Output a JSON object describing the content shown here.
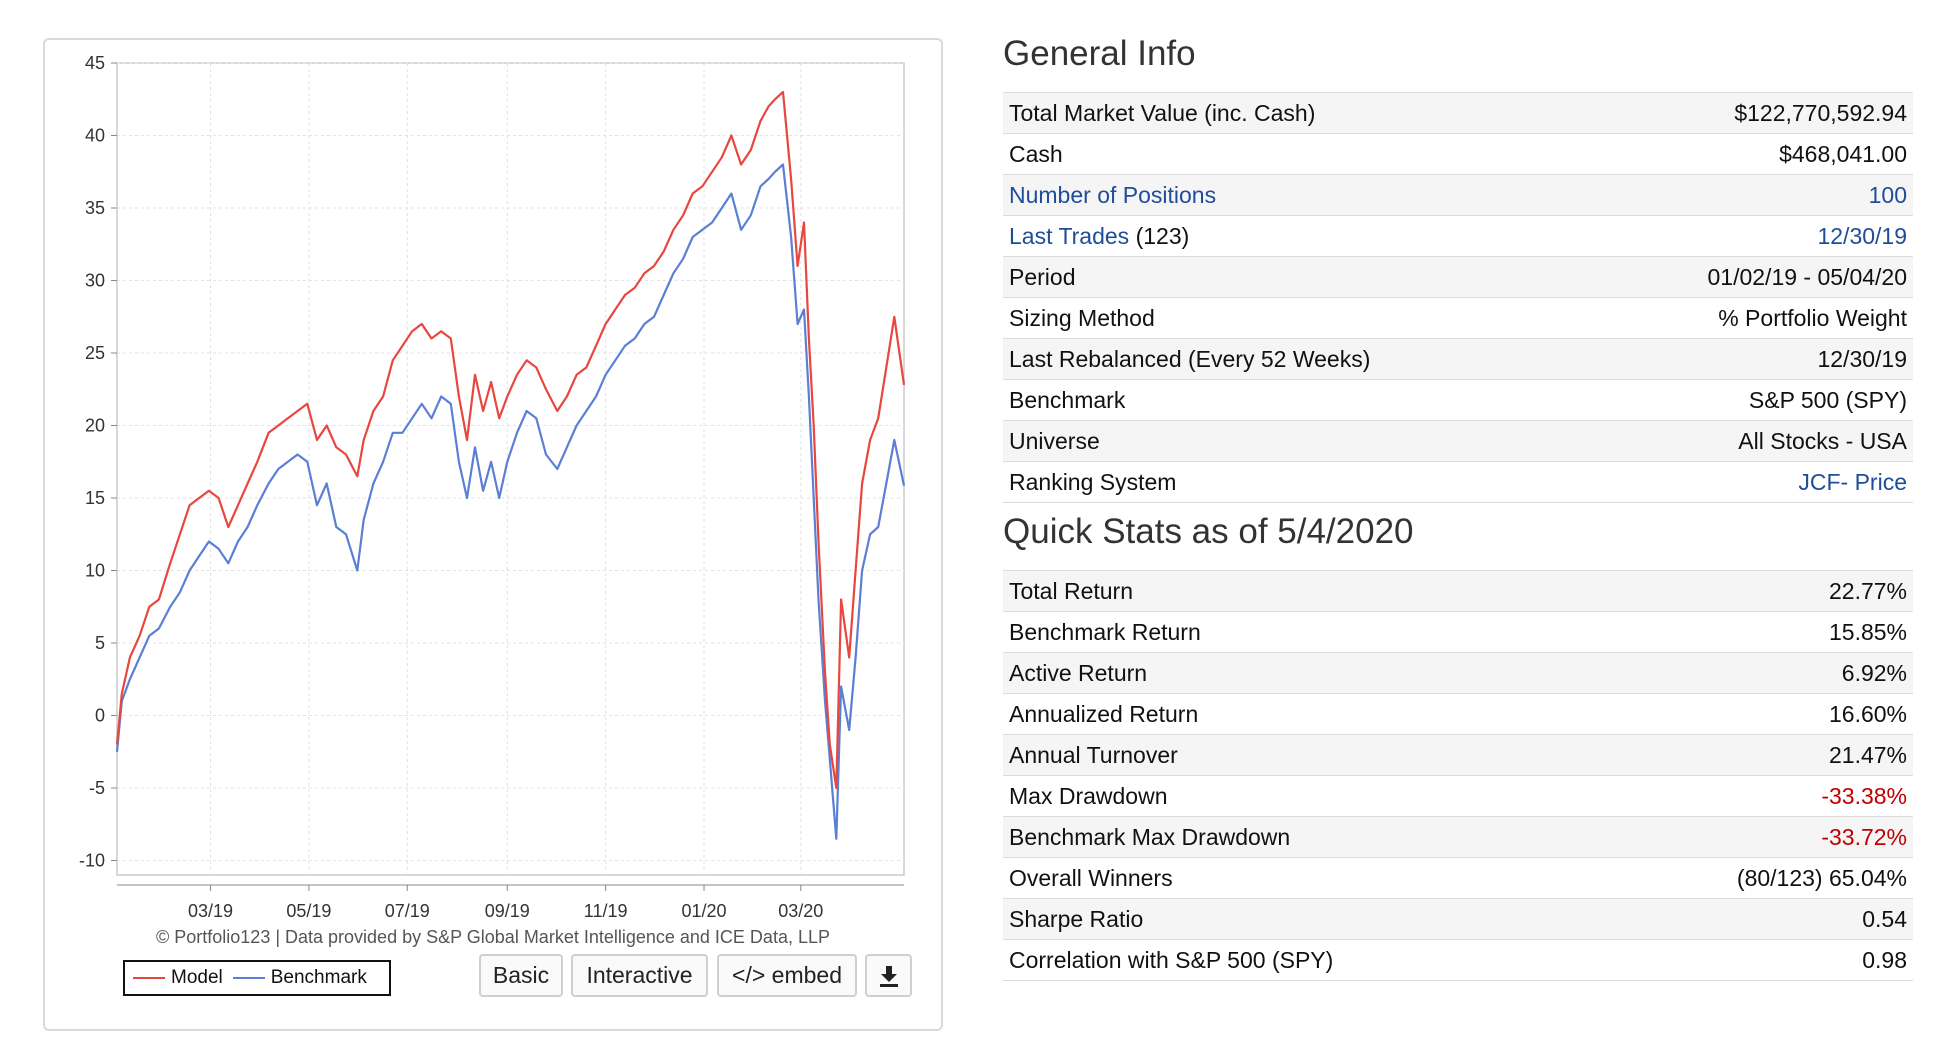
{
  "chart_data": {
    "type": "line",
    "title": "",
    "xlabel": "",
    "ylabel": "",
    "x_ticks": [
      "03/19",
      "05/19",
      "07/19",
      "09/19",
      "11/19",
      "01/20",
      "03/20"
    ],
    "ylim": [
      -11,
      45
    ],
    "y_ticks": [
      45,
      40,
      35,
      30,
      25,
      20,
      15,
      10,
      5,
      0,
      -5,
      -10
    ],
    "grid": true,
    "legend_position": "bottom-left",
    "series": [
      {
        "name": "Model",
        "color": "#e8473f",
        "points": [
          [
            "2019-01-02",
            -2.0
          ],
          [
            "2019-01-05",
            1.5
          ],
          [
            "2019-01-10",
            4.0
          ],
          [
            "2019-01-16",
            5.5
          ],
          [
            "2019-01-22",
            7.5
          ],
          [
            "2019-01-28",
            8.0
          ],
          [
            "2019-02-04",
            10.5
          ],
          [
            "2019-02-10",
            12.5
          ],
          [
            "2019-02-16",
            14.5
          ],
          [
            "2019-02-22",
            15.0
          ],
          [
            "2019-02-28",
            15.5
          ],
          [
            "2019-03-06",
            15.0
          ],
          [
            "2019-03-12",
            13.0
          ],
          [
            "2019-03-18",
            14.5
          ],
          [
            "2019-03-24",
            16.0
          ],
          [
            "2019-03-30",
            17.5
          ],
          [
            "2019-04-06",
            19.5
          ],
          [
            "2019-04-12",
            20.0
          ],
          [
            "2019-04-18",
            20.5
          ],
          [
            "2019-04-24",
            21.0
          ],
          [
            "2019-04-30",
            21.5
          ],
          [
            "2019-05-06",
            19.0
          ],
          [
            "2019-05-12",
            20.0
          ],
          [
            "2019-05-18",
            18.5
          ],
          [
            "2019-05-24",
            18.0
          ],
          [
            "2019-05-31",
            16.5
          ],
          [
            "2019-06-04",
            19.0
          ],
          [
            "2019-06-10",
            21.0
          ],
          [
            "2019-06-16",
            22.0
          ],
          [
            "2019-06-22",
            24.5
          ],
          [
            "2019-06-28",
            25.5
          ],
          [
            "2019-07-04",
            26.5
          ],
          [
            "2019-07-10",
            27.0
          ],
          [
            "2019-07-16",
            26.0
          ],
          [
            "2019-07-22",
            26.5
          ],
          [
            "2019-07-28",
            26.0
          ],
          [
            "2019-08-02",
            22.0
          ],
          [
            "2019-08-07",
            19.0
          ],
          [
            "2019-08-12",
            23.5
          ],
          [
            "2019-08-17",
            21.0
          ],
          [
            "2019-08-22",
            23.0
          ],
          [
            "2019-08-27",
            20.5
          ],
          [
            "2019-09-01",
            22.0
          ],
          [
            "2019-09-07",
            23.5
          ],
          [
            "2019-09-13",
            24.5
          ],
          [
            "2019-09-19",
            24.0
          ],
          [
            "2019-09-25",
            22.5
          ],
          [
            "2019-10-02",
            21.0
          ],
          [
            "2019-10-08",
            22.0
          ],
          [
            "2019-10-14",
            23.5
          ],
          [
            "2019-10-20",
            24.0
          ],
          [
            "2019-10-26",
            25.5
          ],
          [
            "2019-11-01",
            27.0
          ],
          [
            "2019-11-07",
            28.0
          ],
          [
            "2019-11-13",
            29.0
          ],
          [
            "2019-11-19",
            29.5
          ],
          [
            "2019-11-25",
            30.5
          ],
          [
            "2019-12-01",
            31.0
          ],
          [
            "2019-12-07",
            32.0
          ],
          [
            "2019-12-13",
            33.5
          ],
          [
            "2019-12-19",
            34.5
          ],
          [
            "2019-12-25",
            36.0
          ],
          [
            "2019-12-31",
            36.5
          ],
          [
            "2020-01-06",
            37.5
          ],
          [
            "2020-01-12",
            38.5
          ],
          [
            "2020-01-18",
            40.0
          ],
          [
            "2020-01-24",
            38.0
          ],
          [
            "2020-01-30",
            39.0
          ],
          [
            "2020-02-05",
            41.0
          ],
          [
            "2020-02-10",
            42.0
          ],
          [
            "2020-02-14",
            42.5
          ],
          [
            "2020-02-19",
            43.0
          ],
          [
            "2020-02-24",
            37.0
          ],
          [
            "2020-02-28",
            31.0
          ],
          [
            "2020-03-03",
            34.0
          ],
          [
            "2020-03-06",
            26.0
          ],
          [
            "2020-03-09",
            20.0
          ],
          [
            "2020-03-12",
            12.0
          ],
          [
            "2020-03-16",
            3.0
          ],
          [
            "2020-03-19",
            -2.0
          ],
          [
            "2020-03-23",
            -5.0
          ],
          [
            "2020-03-26",
            8.0
          ],
          [
            "2020-03-31",
            4.0
          ],
          [
            "2020-04-04",
            10.0
          ],
          [
            "2020-04-08",
            16.0
          ],
          [
            "2020-04-13",
            19.0
          ],
          [
            "2020-04-18",
            20.5
          ],
          [
            "2020-04-23",
            24.0
          ],
          [
            "2020-04-28",
            27.5
          ],
          [
            "2020-05-04",
            22.8
          ]
        ]
      },
      {
        "name": "Benchmark",
        "color": "#5a7fd4",
        "points": [
          [
            "2019-01-02",
            -2.5
          ],
          [
            "2019-01-05",
            1.0
          ],
          [
            "2019-01-10",
            2.5
          ],
          [
            "2019-01-16",
            4.0
          ],
          [
            "2019-01-22",
            5.5
          ],
          [
            "2019-01-28",
            6.0
          ],
          [
            "2019-02-04",
            7.5
          ],
          [
            "2019-02-10",
            8.5
          ],
          [
            "2019-02-16",
            10.0
          ],
          [
            "2019-02-22",
            11.0
          ],
          [
            "2019-02-28",
            12.0
          ],
          [
            "2019-03-06",
            11.5
          ],
          [
            "2019-03-12",
            10.5
          ],
          [
            "2019-03-18",
            12.0
          ],
          [
            "2019-03-24",
            13.0
          ],
          [
            "2019-03-30",
            14.5
          ],
          [
            "2019-04-06",
            16.0
          ],
          [
            "2019-04-12",
            17.0
          ],
          [
            "2019-04-18",
            17.5
          ],
          [
            "2019-04-24",
            18.0
          ],
          [
            "2019-04-30",
            17.5
          ],
          [
            "2019-05-06",
            14.5
          ],
          [
            "2019-05-12",
            16.0
          ],
          [
            "2019-05-18",
            13.0
          ],
          [
            "2019-05-24",
            12.5
          ],
          [
            "2019-05-31",
            10.0
          ],
          [
            "2019-06-04",
            13.5
          ],
          [
            "2019-06-10",
            16.0
          ],
          [
            "2019-06-16",
            17.5
          ],
          [
            "2019-06-22",
            19.5
          ],
          [
            "2019-06-28",
            19.5
          ],
          [
            "2019-07-04",
            20.5
          ],
          [
            "2019-07-10",
            21.5
          ],
          [
            "2019-07-16",
            20.5
          ],
          [
            "2019-07-22",
            22.0
          ],
          [
            "2019-07-28",
            21.5
          ],
          [
            "2019-08-02",
            17.5
          ],
          [
            "2019-08-07",
            15.0
          ],
          [
            "2019-08-12",
            18.5
          ],
          [
            "2019-08-17",
            15.5
          ],
          [
            "2019-08-22",
            17.5
          ],
          [
            "2019-08-27",
            15.0
          ],
          [
            "2019-09-01",
            17.5
          ],
          [
            "2019-09-07",
            19.5
          ],
          [
            "2019-09-13",
            21.0
          ],
          [
            "2019-09-19",
            20.5
          ],
          [
            "2019-09-25",
            18.0
          ],
          [
            "2019-10-02",
            17.0
          ],
          [
            "2019-10-08",
            18.5
          ],
          [
            "2019-10-14",
            20.0
          ],
          [
            "2019-10-20",
            21.0
          ],
          [
            "2019-10-26",
            22.0
          ],
          [
            "2019-11-01",
            23.5
          ],
          [
            "2019-11-07",
            24.5
          ],
          [
            "2019-11-13",
            25.5
          ],
          [
            "2019-11-19",
            26.0
          ],
          [
            "2019-11-25",
            27.0
          ],
          [
            "2019-12-01",
            27.5
          ],
          [
            "2019-12-07",
            29.0
          ],
          [
            "2019-12-13",
            30.5
          ],
          [
            "2019-12-19",
            31.5
          ],
          [
            "2019-12-25",
            33.0
          ],
          [
            "2019-12-31",
            33.5
          ],
          [
            "2020-01-06",
            34.0
          ],
          [
            "2020-01-12",
            35.0
          ],
          [
            "2020-01-18",
            36.0
          ],
          [
            "2020-01-24",
            33.5
          ],
          [
            "2020-01-30",
            34.5
          ],
          [
            "2020-02-05",
            36.5
          ],
          [
            "2020-02-10",
            37.0
          ],
          [
            "2020-02-14",
            37.5
          ],
          [
            "2020-02-19",
            38.0
          ],
          [
            "2020-02-24",
            33.0
          ],
          [
            "2020-02-28",
            27.0
          ],
          [
            "2020-03-03",
            28.0
          ],
          [
            "2020-03-06",
            22.0
          ],
          [
            "2020-03-09",
            15.0
          ],
          [
            "2020-03-12",
            8.0
          ],
          [
            "2020-03-16",
            1.0
          ],
          [
            "2020-03-19",
            -3.0
          ],
          [
            "2020-03-23",
            -8.5
          ],
          [
            "2020-03-26",
            2.0
          ],
          [
            "2020-03-31",
            -1.0
          ],
          [
            "2020-04-04",
            4.0
          ],
          [
            "2020-04-08",
            10.0
          ],
          [
            "2020-04-13",
            12.5
          ],
          [
            "2020-04-18",
            13.0
          ],
          [
            "2020-04-23",
            16.0
          ],
          [
            "2020-04-28",
            19.0
          ],
          [
            "2020-05-04",
            15.85
          ]
        ]
      }
    ]
  },
  "chart_ui": {
    "credit": "© Portfolio123 | Data provided by S&P Global Market Intelligence and ICE Data, LLP",
    "legend_model": "Model",
    "legend_benchmark": "Benchmark",
    "btn_basic": "Basic",
    "btn_interactive": "Interactive",
    "btn_embed": "</> embed",
    "download_icon": "download-icon"
  },
  "general_info": {
    "title": "General Info",
    "rows": [
      {
        "label": "Total Market Value (inc. Cash)",
        "value": "$122,770,592.94"
      },
      {
        "label": "Cash",
        "value": "$468,041.00"
      },
      {
        "label": "Number of Positions",
        "value": "100",
        "link": true
      },
      {
        "label": "Last Trades",
        "suffix": " (123)",
        "value": "12/30/19",
        "link": true
      },
      {
        "label": "Period",
        "value": "01/02/19 - 05/04/20"
      },
      {
        "label": "Sizing Method",
        "value": "% Portfolio Weight"
      },
      {
        "label": "Last Rebalanced (Every 52 Weeks)",
        "value": "12/30/19"
      },
      {
        "label": "Benchmark",
        "value": "S&P 500 (SPY)"
      },
      {
        "label": "Universe",
        "value": "All Stocks - USA"
      },
      {
        "label": "Ranking System",
        "value": "JCF- Price",
        "value_link": true
      }
    ]
  },
  "quick_stats": {
    "title": "Quick Stats as of 5/4/2020",
    "rows": [
      {
        "label": "Total Return",
        "value": "22.77%"
      },
      {
        "label": "Benchmark Return",
        "value": "15.85%"
      },
      {
        "label": "Active Return",
        "value": "6.92%"
      },
      {
        "label": "Annualized Return",
        "value": "16.60%"
      },
      {
        "label": "Annual Turnover",
        "value": "21.47%"
      },
      {
        "label": "Max Drawdown",
        "value": "-33.38%",
        "negative": true
      },
      {
        "label": "Benchmark Max Drawdown",
        "value": "-33.72%",
        "negative": true
      },
      {
        "label": "Overall Winners",
        "value": "(80/123) 65.04%"
      },
      {
        "label": "Sharpe Ratio",
        "value": "0.54"
      },
      {
        "label": "Correlation with S&P 500 (SPY)",
        "value": "0.98"
      }
    ]
  },
  "colors": {
    "negative": "#c00000",
    "link": "#1f4d99",
    "model_line": "#e8473f",
    "benchmark_line": "#5a7fd4"
  }
}
